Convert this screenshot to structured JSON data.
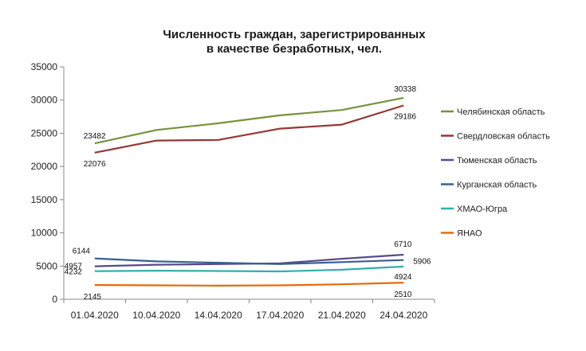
{
  "chart_data": {
    "type": "line",
    "title_lines": [
      "Численность граждан, зарегистрированных",
      "в качестве безработных, чел."
    ],
    "categories": [
      "01.04.2020",
      "10.04.2020",
      "14.04.2020",
      "17.04.2020",
      "21.04.2020",
      "24.04.2020"
    ],
    "ylim": [
      0,
      35000
    ],
    "yticks": [
      0,
      5000,
      10000,
      15000,
      20000,
      25000,
      30000,
      35000
    ],
    "grid": false,
    "legend_position": "right",
    "series": [
      {
        "name": "Челябинская область",
        "color": "#77933C",
        "values": [
          23482,
          25500,
          26500,
          27700,
          28500,
          30338
        ]
      },
      {
        "name": "Свердловская область",
        "color": "#953735",
        "values": [
          22076,
          23900,
          24000,
          25700,
          26300,
          29186
        ]
      },
      {
        "name": "Тюменская область",
        "color": "#5B4A8B",
        "values": [
          4957,
          5200,
          5300,
          5400,
          6100,
          6710
        ]
      },
      {
        "name": "Курганская область",
        "color": "#376092",
        "values": [
          6144,
          5700,
          5500,
          5300,
          5600,
          5906
        ]
      },
      {
        "name": "ХМАО-Югра",
        "color": "#31B0AA",
        "values": [
          4232,
          4300,
          4250,
          4200,
          4450,
          4924
        ]
      },
      {
        "name": "ЯНАО",
        "color": "#E46C0A",
        "values": [
          2145,
          2100,
          2050,
          2100,
          2250,
          2510
        ]
      }
    ],
    "data_labels": [
      {
        "series": 0,
        "index": 0,
        "text": "23482"
      },
      {
        "series": 0,
        "index": 5,
        "text": "30338"
      },
      {
        "series": 1,
        "index": 0,
        "text": "22076"
      },
      {
        "series": 1,
        "index": 5,
        "text": "29186"
      },
      {
        "series": 2,
        "index": 0,
        "text": "4957"
      },
      {
        "series": 2,
        "index": 5,
        "text": "6710"
      },
      {
        "series": 3,
        "index": 0,
        "text": "6144"
      },
      {
        "series": 3,
        "index": 5,
        "text": "5906"
      },
      {
        "series": 4,
        "index": 0,
        "text": "4232"
      },
      {
        "series": 4,
        "index": 5,
        "text": "4924"
      },
      {
        "series": 5,
        "index": 0,
        "text": "2145"
      },
      {
        "series": 5,
        "index": 5,
        "text": "2510"
      }
    ]
  }
}
